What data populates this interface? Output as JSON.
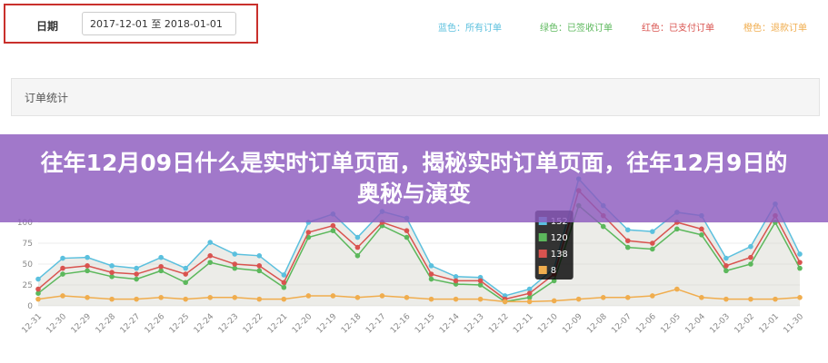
{
  "filter": {
    "label": "日期",
    "date_range": "2017-12-01 至 2018-01-01"
  },
  "panel": {
    "title": "订单统计"
  },
  "banner": {
    "title": "往年12月09日什么是实时订单页面，揭秘实时订单页面，往年12月9日的奥秘与演变"
  },
  "chart_data": {
    "type": "line",
    "categories": [
      "12-31",
      "12-30",
      "12-29",
      "12-28",
      "12-27",
      "12-26",
      "12-25",
      "12-24",
      "12-23",
      "12-22",
      "12-21",
      "12-20",
      "12-19",
      "12-18",
      "12-17",
      "12-16",
      "12-15",
      "12-14",
      "12-13",
      "12-12",
      "12-11",
      "12-10",
      "12-09",
      "12-08",
      "12-07",
      "12-06",
      "12-05",
      "12-04",
      "12-03",
      "12-02",
      "12-01",
      "11-30"
    ],
    "series": [
      {
        "name": "蓝色：所有订单",
        "color": "#5bc0de",
        "values": [
          32,
          57,
          58,
          48,
          45,
          58,
          45,
          76,
          62,
          60,
          37,
          100,
          110,
          82,
          113,
          105,
          48,
          35,
          34,
          12,
          20,
          45,
          152,
          120,
          91,
          89,
          112,
          108,
          57,
          71,
          122,
          62
        ]
      },
      {
        "name": "绿色：已签收订单",
        "color": "#5cb85c",
        "values": [
          15,
          38,
          42,
          35,
          32,
          42,
          28,
          52,
          45,
          42,
          22,
          82,
          90,
          60,
          96,
          82,
          32,
          26,
          25,
          5,
          10,
          30,
          120,
          95,
          70,
          68,
          92,
          85,
          42,
          50,
          100,
          45
        ]
      },
      {
        "name": "红色：已支付订单",
        "color": "#d9534f",
        "values": [
          20,
          45,
          48,
          40,
          38,
          47,
          38,
          60,
          50,
          48,
          28,
          88,
          96,
          70,
          100,
          90,
          38,
          30,
          30,
          8,
          15,
          38,
          138,
          108,
          78,
          75,
          100,
          92,
          48,
          58,
          108,
          52
        ]
      },
      {
        "name": "橙色：退款订单",
        "color": "#f0ad4e",
        "values": [
          8,
          12,
          10,
          8,
          8,
          10,
          8,
          10,
          10,
          8,
          8,
          12,
          12,
          10,
          12,
          10,
          8,
          8,
          8,
          5,
          5,
          6,
          8,
          10,
          10,
          12,
          20,
          10,
          8,
          8,
          8,
          10
        ]
      }
    ],
    "ylim": [
      0,
      175
    ],
    "yticks": [
      0,
      25,
      50,
      75,
      100
    ],
    "grid": true
  }
}
